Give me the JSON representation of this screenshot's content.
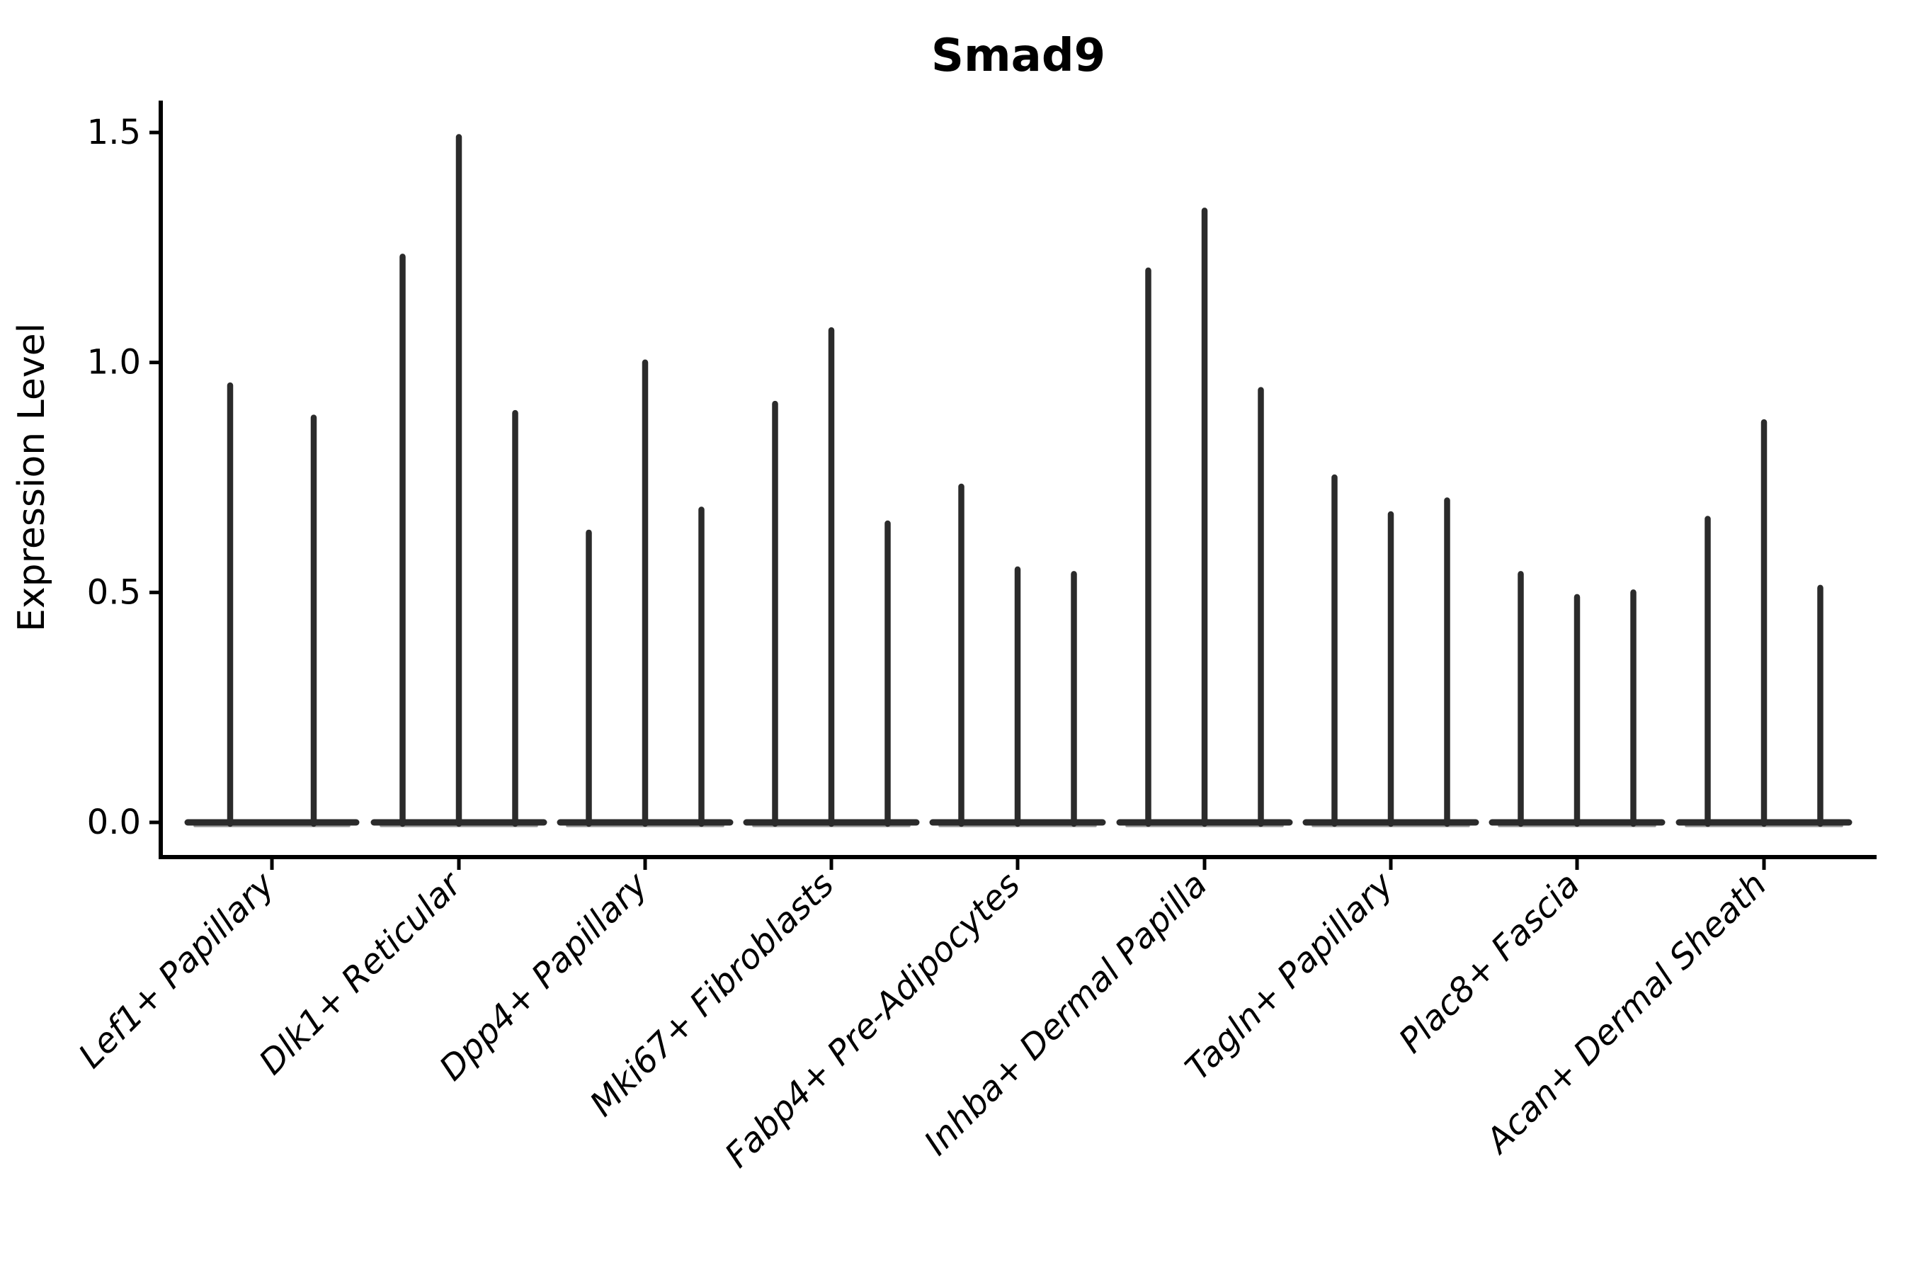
{
  "figure": {
    "title": "Smad9",
    "ylabel": "Expression Level"
  },
  "chart_data": {
    "type": "violin",
    "title": "Smad9",
    "xlabel": "",
    "ylabel": "Expression Level",
    "ylim": [
      -0.08,
      1.57
    ],
    "yticks": [
      0.0,
      0.5,
      1.0,
      1.5
    ],
    "ytick_labels": [
      "0.0",
      "0.5",
      "1.0",
      "1.5"
    ],
    "grid": false,
    "legend": "none",
    "background_color": "#ffffff",
    "violin_color": "#2b2b2b",
    "axis_color": "#000000",
    "categories": [
      "Lef1+ Papillary",
      "Dlk1+ Reticular",
      "Dpp4+ Papillary",
      "Mki67+ Fibroblasts",
      "Fabp4+ Pre-Adipocytes",
      "Inhba+ Dermal Papilla",
      "Tagln+ Papillary",
      "Plac8+ Fascia",
      "Acan+ Dermal Sheath"
    ],
    "violins_per_category": [
      2,
      3,
      3,
      3,
      3,
      3,
      3,
      3,
      3
    ],
    "series": [
      {
        "category": "Lef1+ Papillary",
        "max_values": [
          0.95,
          0.88
        ]
      },
      {
        "category": "Dlk1+ Reticular",
        "max_values": [
          1.23,
          1.49,
          0.89
        ]
      },
      {
        "category": "Dpp4+ Papillary",
        "max_values": [
          0.63,
          1.0,
          0.68
        ]
      },
      {
        "category": "Mki67+ Fibroblasts",
        "max_values": [
          0.91,
          1.07,
          0.65
        ]
      },
      {
        "category": "Fabp4+ Pre-Adipocytes",
        "max_values": [
          0.73,
          0.55,
          0.54
        ]
      },
      {
        "category": "Inhba+ Dermal Papilla",
        "max_values": [
          1.2,
          1.33,
          0.94
        ]
      },
      {
        "category": "Tagln+ Papillary",
        "max_values": [
          0.75,
          0.67,
          0.7
        ]
      },
      {
        "category": "Plac8+ Fascia",
        "max_values": [
          0.54,
          0.49,
          0.5
        ]
      },
      {
        "category": "Acan+ Dermal Sheath",
        "max_values": [
          0.66,
          0.87,
          0.51
        ]
      }
    ],
    "shape_note": "each violin is a flat wide base at expression 0 with a thin vertical spike up to its max value"
  }
}
